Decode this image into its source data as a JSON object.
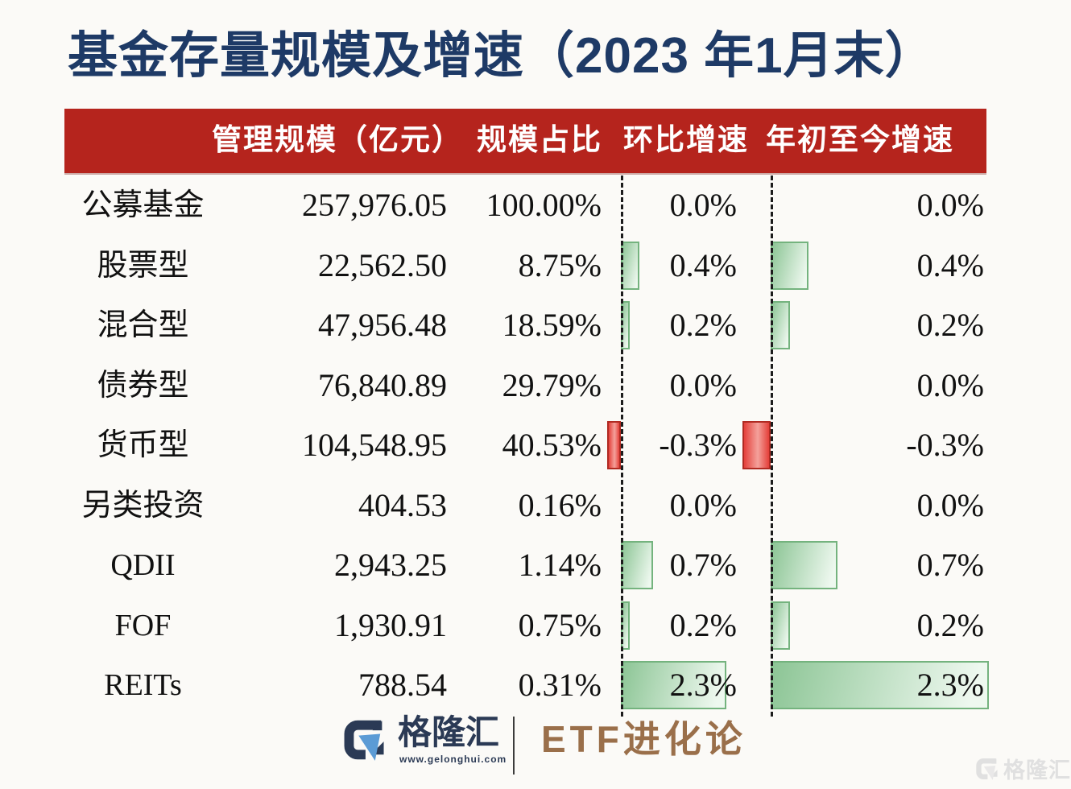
{
  "title": "基金存量规模及增速（2023 年1月末）",
  "table": {
    "headers": {
      "scale": "管理规模（亿元）",
      "share": "规模占比",
      "mom": "环比增速",
      "ytd": "年初至今增速"
    },
    "rows": [
      {
        "label": "公募基金",
        "scale": "257,976.05",
        "share": "100.00%",
        "mom": "0.0%",
        "ytd": "0.0%",
        "mom_value": 0.0,
        "ytd_value": 0.0
      },
      {
        "label": "股票型",
        "scale": "22,562.50",
        "share": "8.75%",
        "mom": "0.4%",
        "ytd": "0.4%",
        "mom_value": 0.4,
        "ytd_value": 0.4
      },
      {
        "label": "混合型",
        "scale": "47,956.48",
        "share": "18.59%",
        "mom": "0.2%",
        "ytd": "0.2%",
        "mom_value": 0.2,
        "ytd_value": 0.2
      },
      {
        "label": "债券型",
        "scale": "76,840.89",
        "share": "29.79%",
        "mom": "0.0%",
        "ytd": "0.0%",
        "mom_value": 0.0,
        "ytd_value": 0.0
      },
      {
        "label": "货币型",
        "scale": "104,548.95",
        "share": "40.53%",
        "mom": "-0.3%",
        "ytd": "-0.3%",
        "mom_value": -0.3,
        "ytd_value": -0.3
      },
      {
        "label": "另类投资",
        "scale": "404.53",
        "share": "0.16%",
        "mom": "0.0%",
        "ytd": "0.0%",
        "mom_value": 0.0,
        "ytd_value": 0.0
      },
      {
        "label": "QDII",
        "scale": "2,943.25",
        "share": "1.14%",
        "mom": "0.7%",
        "ytd": "0.7%",
        "mom_value": 0.7,
        "ytd_value": 0.7
      },
      {
        "label": "FOF",
        "scale": "1,930.91",
        "share": "0.75%",
        "mom": "0.2%",
        "ytd": "0.2%",
        "mom_value": 0.2,
        "ytd_value": 0.2
      },
      {
        "label": "REITs",
        "scale": "788.54",
        "share": "0.31%",
        "mom": "2.3%",
        "ytd": "2.3%",
        "mom_value": 2.3,
        "ytd_value": 2.3
      }
    ]
  },
  "chart_data": {
    "type": "bar",
    "title": "基金存量规模及增速（2023 年1月末）",
    "categories": [
      "公募基金",
      "股票型",
      "混合型",
      "债券型",
      "货币型",
      "另类投资",
      "QDII",
      "FOF",
      "REITs"
    ],
    "series": [
      {
        "name": "管理规模（亿元）",
        "values": [
          257976.05,
          22562.5,
          47956.48,
          76840.89,
          104548.95,
          404.53,
          2943.25,
          1930.91,
          788.54
        ]
      },
      {
        "name": "规模占比",
        "unit": "%",
        "values": [
          100.0,
          8.75,
          18.59,
          29.79,
          40.53,
          0.16,
          1.14,
          0.75,
          0.31
        ]
      },
      {
        "name": "环比增速",
        "unit": "%",
        "values": [
          0.0,
          0.4,
          0.2,
          0.0,
          -0.3,
          0.0,
          0.7,
          0.2,
          2.3
        ]
      },
      {
        "name": "年初至今增速",
        "unit": "%",
        "values": [
          0.0,
          0.4,
          0.2,
          0.0,
          -0.3,
          0.0,
          0.7,
          0.2,
          2.3
        ]
      }
    ],
    "orientation": "horizontal",
    "grid": false,
    "legend_position": "none",
    "positive_color": "#8cc595",
    "negative_color": "#e4403a"
  },
  "footer": {
    "brand": "格隆汇",
    "url": "www.gelonghui.com",
    "channel": "ETF进化论"
  },
  "watermark": {
    "brand": "格隆汇"
  },
  "colors": {
    "title_blue": "#1e3a66",
    "header_red": "#b5241d",
    "bar_green": "#8cc595",
    "bar_green_light": "#eef8ef",
    "bar_green_border": "#74b37e",
    "bar_red": "#e4403a",
    "bar_red_light": "#f4a19b",
    "bar_red_border": "#b02a22",
    "brand_navy": "#2b3a55",
    "brand_blue": "#5b9bd5",
    "channel_brown": "#9a6f4a"
  }
}
